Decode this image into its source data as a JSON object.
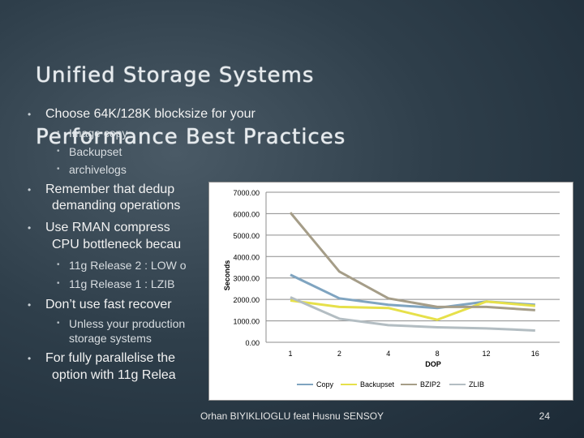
{
  "slide": {
    "title_line1": "Unified Storage Systems",
    "title_line2": "Performance Best Practices",
    "footer": "Orhan BIYIKLIOGLU feat Husnu SENSOY",
    "page_number": "24"
  },
  "bullets": [
    {
      "level": 1,
      "text": "Choose 64K/128K blocksize for your"
    },
    {
      "level": 2,
      "text": "Image copy"
    },
    {
      "level": 2,
      "text": "Backupset"
    },
    {
      "level": 2,
      "text": "archivelogs"
    },
    {
      "level": 1,
      "text": "Remember that dedup"
    },
    {
      "level": 1,
      "cont": true,
      "text": "demanding operations"
    },
    {
      "level": 1,
      "text": "Use RMAN compress"
    },
    {
      "level": 1,
      "cont": true,
      "text": "CPU bottleneck becau"
    },
    {
      "level": 2,
      "text": "11g Release 2 : LOW o"
    },
    {
      "level": 2,
      "text": "11g Release 1 : LZIB"
    },
    {
      "level": 1,
      "text": "Don’t use fast recover"
    },
    {
      "level": 2,
      "text": "Unless your production"
    },
    {
      "level": 2,
      "cont": true,
      "text": "storage systems"
    },
    {
      "level": 1,
      "text": "For fully parallelise the"
    },
    {
      "level": 1,
      "cont": true,
      "text": "option with 11g Relea"
    }
  ],
  "chart_data": {
    "type": "line",
    "categories": [
      "1",
      "2",
      "4",
      "8",
      "12",
      "16"
    ],
    "xlabel": "DOP",
    "ylabel": "Seconds",
    "ylim": [
      0,
      7000
    ],
    "yticks": [
      "7000.00",
      "6000.00",
      "5000.00",
      "4000.00",
      "3000.00",
      "2000.00",
      "1000.00",
      "0.00"
    ],
    "grid": true,
    "legend": "bottom",
    "series": [
      {
        "name": "Copy",
        "color": "#7fa4c0",
        "values": [
          3150,
          2050,
          1750,
          1600,
          1900,
          1750
        ]
      },
      {
        "name": "Backupset",
        "color": "#e6e04a",
        "values": [
          1950,
          1650,
          1600,
          1050,
          1900,
          1700
        ]
      },
      {
        "name": "BZIP2",
        "color": "#a59d88",
        "values": [
          6050,
          3300,
          2050,
          1650,
          1650,
          1500
        ]
      },
      {
        "name": "ZLIB",
        "color": "#b3bdc2",
        "values": [
          2100,
          1100,
          800,
          700,
          650,
          550
        ]
      }
    ]
  }
}
